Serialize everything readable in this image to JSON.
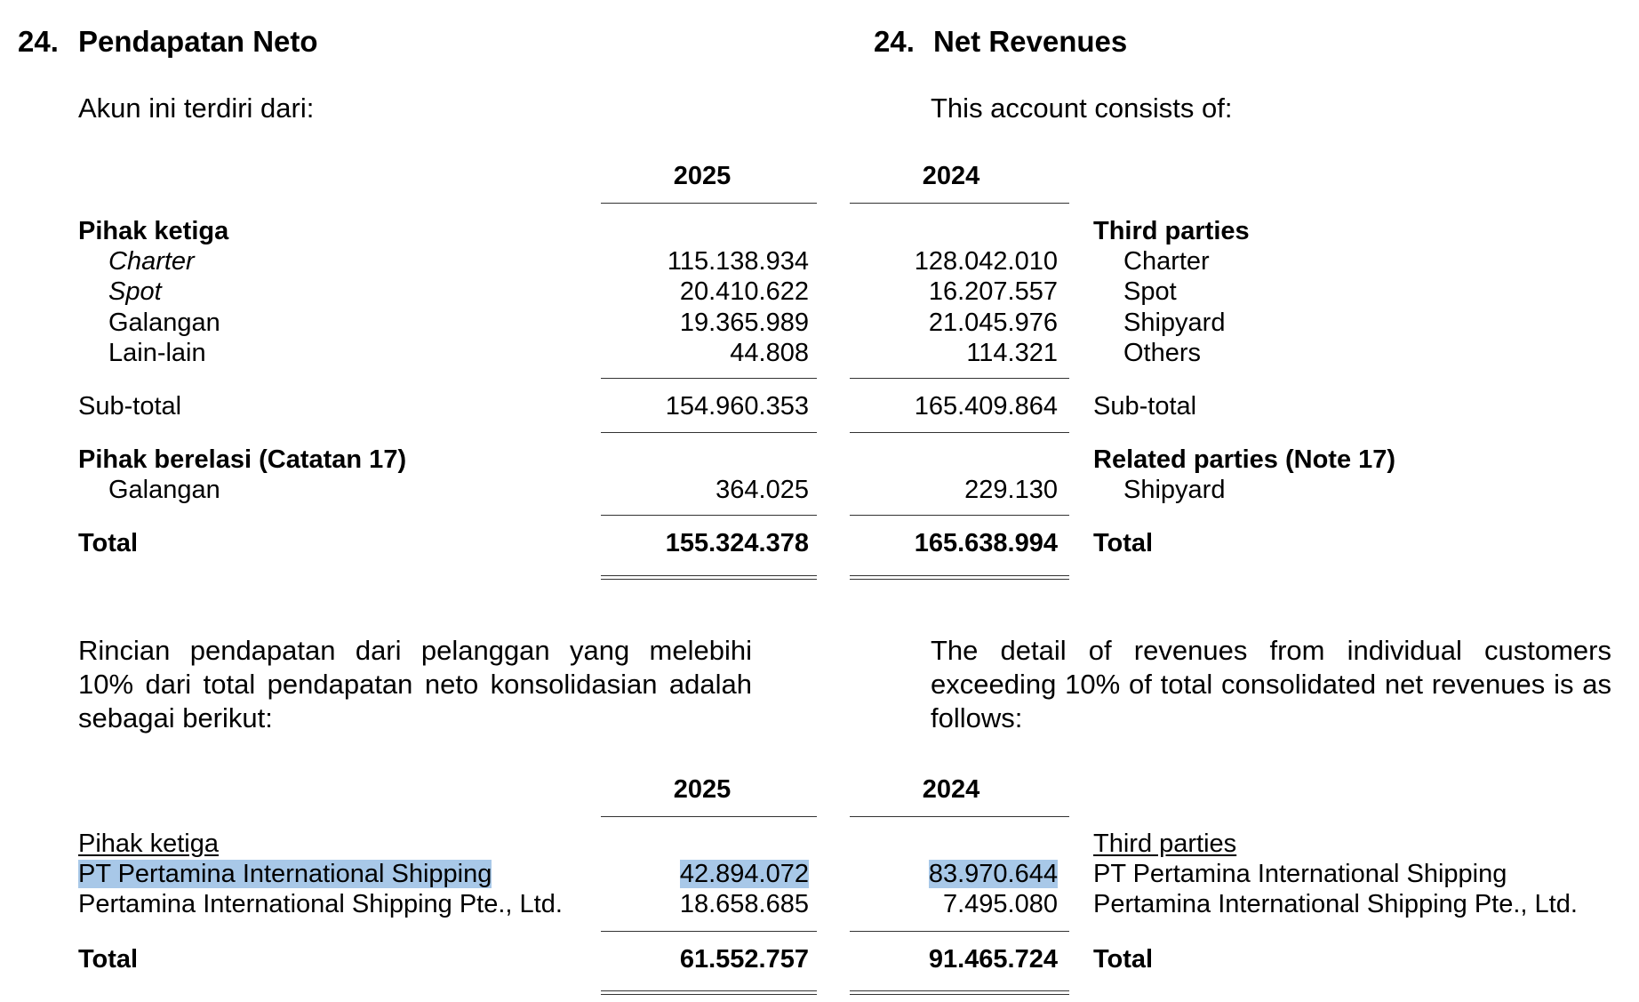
{
  "left": {
    "heading_number": "24.",
    "heading_title": "Pendapatan Neto",
    "intro": "Akun ini terdiri dari:",
    "detail_text": "Rincian pendapatan dari pelanggan yang melebihi 10% dari total pendapatan neto konsolidasian adalah sebagai berikut:"
  },
  "right": {
    "heading_number": "24.",
    "heading_title": "Net Revenues",
    "intro": "This account consists of:",
    "detail_text": "The detail of revenues from individual customers exceeding 10% of total consolidated net revenues is as follows:"
  },
  "years": {
    "current": "2025",
    "prior": "2024"
  },
  "revenue_table": {
    "third_parties": {
      "label_id": "Pihak ketiga",
      "label_en": "Third parties"
    },
    "rows": [
      {
        "label_id": "Charter",
        "label_en": "Charter",
        "v2025": "115.138.934",
        "v2024": "128.042.010"
      },
      {
        "label_id": "Spot",
        "label_en": "Spot",
        "v2025": "20.410.622",
        "v2024": "16.207.557"
      },
      {
        "label_id": "Galangan",
        "label_en": "Shipyard",
        "v2025": "19.365.989",
        "v2024": "21.045.976"
      },
      {
        "label_id": "Lain-lain",
        "label_en": "Others",
        "v2025": "44.808",
        "v2024": "114.321"
      }
    ],
    "subtotal": {
      "label_id": "Sub-total",
      "label_en": "Sub-total",
      "v2025": "154.960.353",
      "v2024": "165.409.864"
    },
    "related_parties": {
      "label_id": "Pihak berelasi (Catatan 17)",
      "label_en": "Related parties (Note 17)"
    },
    "related_row": {
      "label_id": "Galangan",
      "label_en": "Shipyard",
      "v2025": "364.025",
      "v2024": "229.130"
    },
    "total": {
      "label_id": "Total",
      "label_en": "Total",
      "v2025": "155.324.378",
      "v2024": "165.638.994"
    }
  },
  "customer_table": {
    "third_parties": {
      "label_id": "Pihak ketiga",
      "label_en": "Third parties"
    },
    "rows": [
      {
        "label_id": "PT Pertamina International Shipping",
        "label_en": "PT Pertamina International Shipping",
        "v2025": "42.894.072",
        "v2024": "83.970.644",
        "highlighted": true
      },
      {
        "label_id": "Pertamina International Shipping Pte., Ltd.",
        "label_en": "Pertamina International Shipping Pte., Ltd.",
        "v2025": "18.658.685",
        "v2024": "7.495.080",
        "highlighted": false
      }
    ],
    "total": {
      "label_id": "Total",
      "label_en": "Total",
      "v2025": "61.552.757",
      "v2024": "91.465.724"
    }
  },
  "colors": {
    "highlight": "#a8c8e8",
    "text": "#000000",
    "rule": "#333333"
  }
}
